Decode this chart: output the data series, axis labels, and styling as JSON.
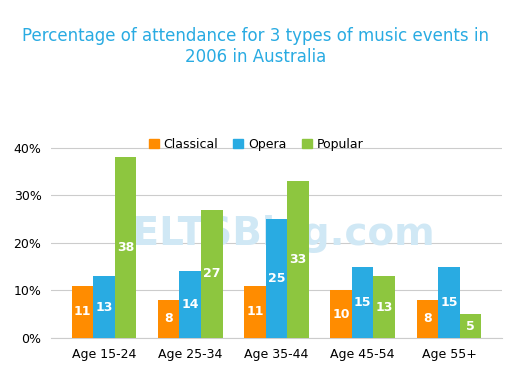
{
  "title": "Percentage of attendance for 3 types of music events in\n2006 in Australia",
  "categories": [
    "Age 15-24",
    "Age 25-34",
    "Age 35-44",
    "Age 45-54",
    "Age 55+"
  ],
  "series": {
    "Classical": [
      11,
      8,
      11,
      10,
      8
    ],
    "Opera": [
      13,
      14,
      25,
      15,
      15
    ],
    "Popular": [
      38,
      27,
      33,
      13,
      5
    ]
  },
  "colors": {
    "Classical": "#FF8C00",
    "Opera": "#29ABE2",
    "Popular": "#8DC63F"
  },
  "ylim": [
    0,
    42
  ],
  "yticks": [
    0,
    10,
    20,
    30,
    40
  ],
  "ytick_labels": [
    "0%",
    "10%",
    "20%",
    "30%",
    "40%"
  ],
  "bar_width": 0.25,
  "title_fontsize": 12,
  "title_color": "#29ABE2",
  "legend_fontsize": 9,
  "tick_fontsize": 9,
  "label_fontsize": 9,
  "background_color": "#ffffff",
  "grid_color": "#cccccc",
  "watermark_text": "IELTSBlog.com",
  "watermark_color": "#d0e8f5",
  "watermark_fontsize": 28
}
